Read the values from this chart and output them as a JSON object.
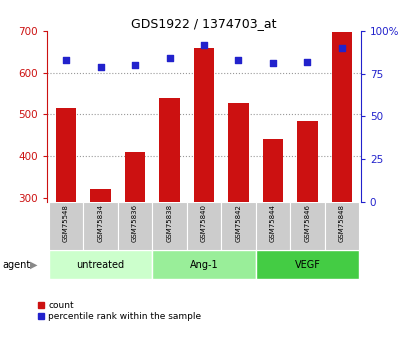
{
  "title": "GDS1922 / 1374703_at",
  "samples": [
    "GSM75548",
    "GSM75834",
    "GSM75836",
    "GSM75838",
    "GSM75840",
    "GSM75842",
    "GSM75844",
    "GSM75846",
    "GSM75848"
  ],
  "counts": [
    515,
    320,
    410,
    540,
    660,
    528,
    440,
    483,
    697
  ],
  "percentile_ranks": [
    83,
    79,
    80,
    84,
    92,
    83,
    81,
    82,
    90
  ],
  "groups": [
    {
      "label": "untreated",
      "indices": [
        0,
        1,
        2
      ],
      "color": "#ccffcc"
    },
    {
      "label": "Ang-1",
      "indices": [
        3,
        4,
        5
      ],
      "color": "#99ee99"
    },
    {
      "label": "VEGF",
      "indices": [
        6,
        7,
        8
      ],
      "color": "#44cc44"
    }
  ],
  "ylim_left": [
    290,
    700
  ],
  "ylim_right": [
    0,
    100
  ],
  "yticks_left": [
    300,
    400,
    500,
    600,
    700
  ],
  "yticks_right": [
    0,
    25,
    50,
    75,
    100
  ],
  "ytick_labels_right": [
    "0",
    "25",
    "50",
    "75",
    "100%"
  ],
  "bar_color": "#cc1111",
  "dot_color": "#2222cc",
  "bar_width": 0.6,
  "left_axis_color": "#cc1111",
  "right_axis_color": "#2222cc",
  "grid_color": "#999999",
  "background_plot": "#ffffff",
  "background_xtick": "#cccccc",
  "legend_count_label": "count",
  "legend_pct_label": "percentile rank within the sample",
  "agent_label": "agent"
}
